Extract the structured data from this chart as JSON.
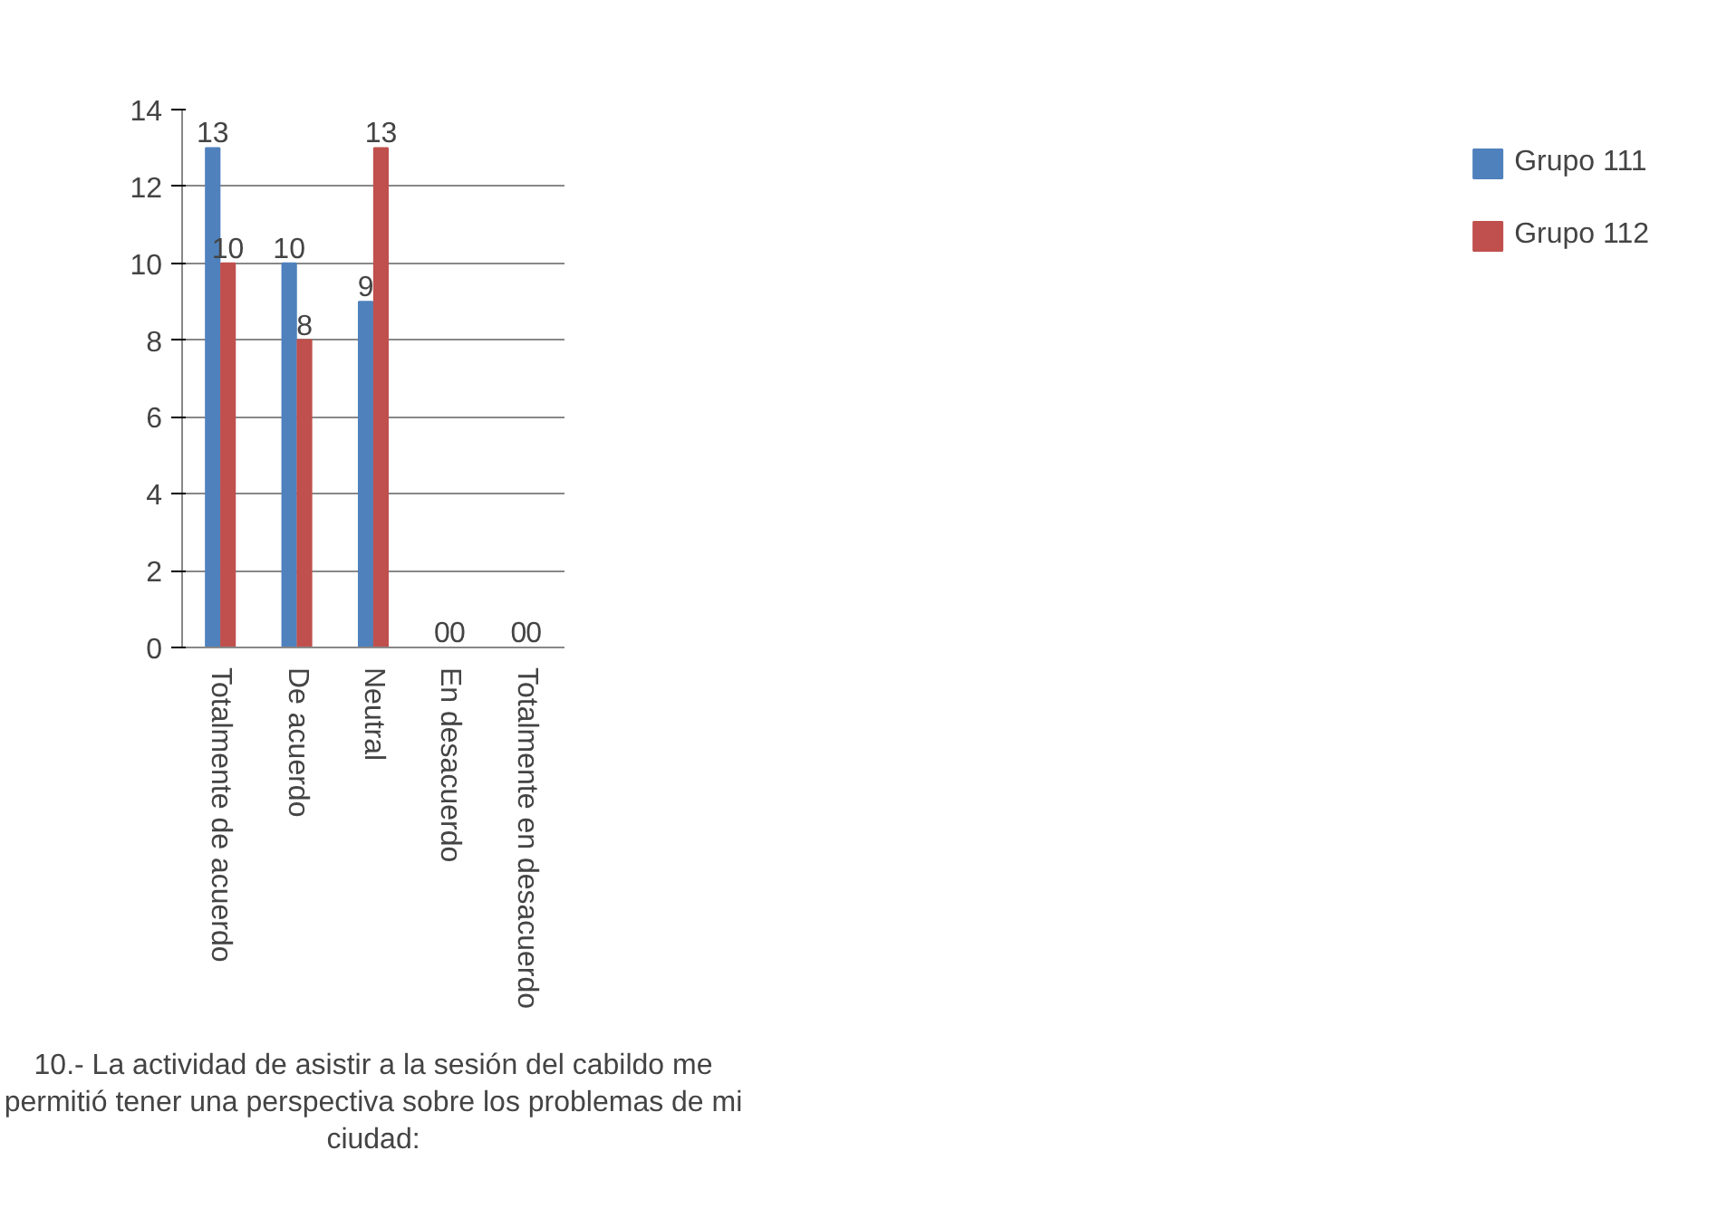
{
  "chart_data": {
    "type": "bar",
    "categories": [
      "Totalmente de acuerdo",
      "De acuerdo",
      "Neutral",
      "En desacuerdo",
      "Totalmente en desacuerdo"
    ],
    "series": [
      {
        "name": "Grupo 111",
        "color": "#4f81bd",
        "values": [
          13,
          10,
          9,
          0,
          0
        ]
      },
      {
        "name": "Grupo 112",
        "color": "#c0504d",
        "values": [
          10,
          8,
          13,
          0,
          0
        ]
      }
    ],
    "xlabel": "10.- La actividad de asistir a la sesión del cabildo me permitió tener una perspectiva sobre los problemas de mi ciudad:",
    "ylim": [
      0,
      14
    ],
    "yticks": [
      0,
      2,
      4,
      6,
      8,
      10,
      12,
      14
    ],
    "grid": "y",
    "legend": "right",
    "data_labels": true
  }
}
